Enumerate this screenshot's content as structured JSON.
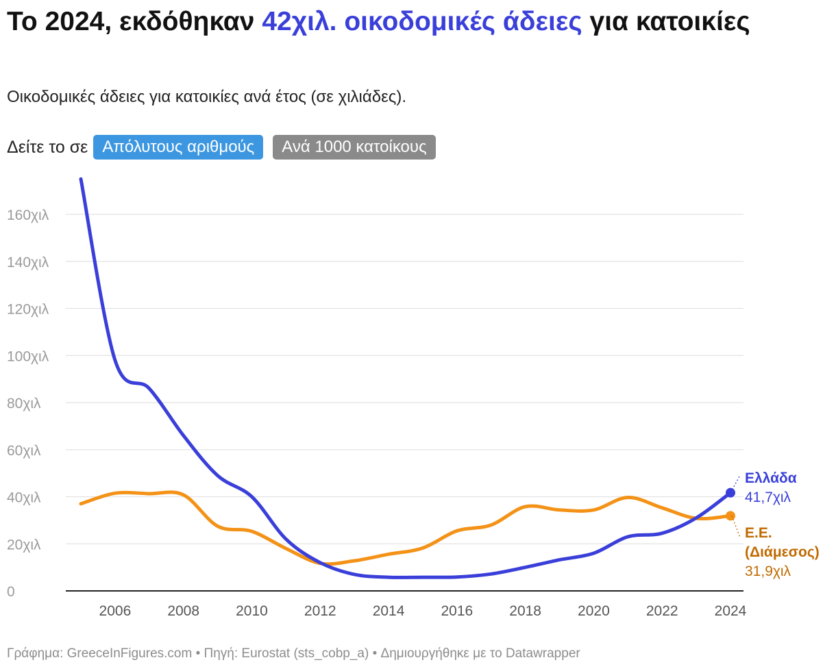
{
  "header": {
    "title_prefix": "Το 2024, εκδόθηκαν",
    "title_highlight": "42χιλ. οικοδομικές άδειες",
    "title_suffix": "για κατοικίες",
    "subtitle": "Οικοδομικές άδειες για κατοικίες ανά έτος (σε χιλιάδες)."
  },
  "toggle": {
    "label": "Δείτε το σε",
    "options": [
      "Απόλυτους αριθμούς",
      "Ανά 1000 κατοίκους"
    ],
    "selected": "Απόλυτους αριθμούς"
  },
  "chart_data": {
    "type": "line",
    "title": "Το 2024, εκδόθηκαν 42χιλ. οικοδομικές άδειες για κατοικίες",
    "subtitle": "Οικοδομικές άδειες για κατοικίες ανά έτος (σε χιλιάδες).",
    "xlabel": "",
    "ylabel": "",
    "xlim": [
      2005,
      2024
    ],
    "ylim": [
      0,
      170
    ],
    "y_ticks": [
      0,
      20,
      40,
      60,
      80,
      100,
      120,
      140,
      160
    ],
    "y_tick_labels": [
      "0",
      "20χιλ",
      "40χιλ",
      "60χιλ",
      "80χιλ",
      "100χιλ",
      "120χιλ",
      "140χιλ",
      "160χιλ"
    ],
    "x_ticks": [
      2006,
      2008,
      2010,
      2012,
      2014,
      2016,
      2018,
      2020,
      2022,
      2024
    ],
    "x": [
      2005,
      2006,
      2007,
      2008,
      2009,
      2010,
      2011,
      2012,
      2013,
      2014,
      2015,
      2016,
      2017,
      2018,
      2019,
      2020,
      2021,
      2022,
      2023,
      2024
    ],
    "series": [
      {
        "name": "Ελλάδα",
        "color": "#3a3fd9",
        "values": [
          175,
          98,
          86,
          66,
          49,
          40,
          22,
          12,
          7,
          5.8,
          5.8,
          5.9,
          7.2,
          10,
          13.2,
          16,
          23,
          24.5,
          31,
          41.7
        ],
        "end_label": "Ελλάδα",
        "end_value_label": "41,7χιλ"
      },
      {
        "name": "Ε.Ε. (Διάμεσος)",
        "color": "#f39217",
        "values": [
          37,
          41.5,
          41.3,
          40.8,
          27.5,
          25.3,
          18,
          11.7,
          12.8,
          15.6,
          18.2,
          25.5,
          28,
          35.8,
          34.4,
          34.4,
          39.7,
          35.3,
          30.8,
          31.9
        ],
        "end_label": "Ε.Ε. (Διάμεσος)",
        "end_label_lines": [
          "Ε.Ε.",
          "(Διάμεσος)"
        ],
        "end_value_label": "31,9χιλ"
      }
    ]
  },
  "footer": {
    "text": "Γράφημα: GreeceInFigures.com • Πηγή: Eurostat (sts_cobp_a) • Δημιουργήθηκε με το Datawrapper"
  }
}
